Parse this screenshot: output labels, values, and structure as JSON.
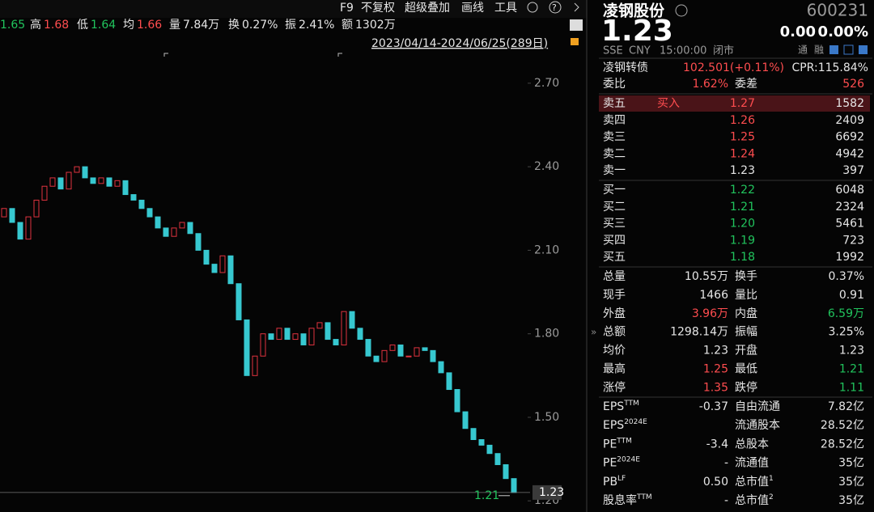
{
  "menu": [
    "F9",
    "不复权",
    "超级叠加",
    "画线",
    "工具"
  ],
  "quote": [
    {
      "value": "1.65",
      "color": "#21c45d"
    },
    {
      "label": "高",
      "value": "1.68",
      "color": "#ff4d4f"
    },
    {
      "label": "低",
      "value": "1.64",
      "color": "#21c45d"
    },
    {
      "label": "均",
      "value": "1.66",
      "color": "#ff4d4f"
    },
    {
      "label": "量",
      "value": "7.84万"
    },
    {
      "label": "换",
      "value": "0.27%"
    },
    {
      "label": "振",
      "value": "2.41%"
    },
    {
      "label": "额",
      "value": "1302万"
    }
  ],
  "date_range": "2023/04/14-2024/06/25(289日)",
  "chart_data": {
    "type": "candlestick",
    "ylim": [
      1.16,
      2.81
    ],
    "yticks": [
      {
        "value": 2.7,
        "label": "2.70"
      },
      {
        "value": 2.4,
        "label": "2.40"
      },
      {
        "value": 2.1,
        "label": "2.10"
      },
      {
        "value": 1.8,
        "label": "1.80"
      },
      {
        "value": 1.5,
        "label": "1.50"
      },
      {
        "value": 1.2,
        "label": "1.20"
      }
    ],
    "open": [
      2.22,
      2.25,
      2.2,
      2.14,
      2.22,
      2.28,
      2.33,
      2.36,
      2.32,
      2.38,
      2.4,
      2.36,
      2.34,
      2.36,
      2.33,
      2.35,
      2.3,
      2.28,
      2.25,
      2.22,
      2.18,
      2.15,
      2.18,
      2.2,
      2.16,
      2.1,
      2.05,
      2.02,
      2.08,
      1.98,
      1.85,
      1.65,
      1.72,
      1.8,
      1.78,
      1.82,
      1.78,
      1.8,
      1.76,
      1.82,
      1.84,
      1.78,
      1.76,
      1.88,
      1.82,
      1.78,
      1.72,
      1.7,
      1.74,
      1.76,
      1.72,
      1.72,
      1.75,
      1.74,
      1.7,
      1.66,
      1.6,
      1.52,
      1.46,
      1.42,
      1.4,
      1.37,
      1.33,
      1.28
    ],
    "close": [
      2.25,
      2.2,
      2.14,
      2.22,
      2.28,
      2.33,
      2.36,
      2.32,
      2.38,
      2.4,
      2.36,
      2.34,
      2.36,
      2.33,
      2.35,
      2.3,
      2.28,
      2.25,
      2.22,
      2.18,
      2.15,
      2.18,
      2.2,
      2.16,
      2.1,
      2.05,
      2.02,
      2.08,
      1.98,
      1.85,
      1.65,
      1.72,
      1.8,
      1.78,
      1.82,
      1.78,
      1.8,
      1.76,
      1.82,
      1.84,
      1.78,
      1.76,
      1.88,
      1.82,
      1.78,
      1.72,
      1.7,
      1.74,
      1.76,
      1.72,
      1.72,
      1.75,
      1.74,
      1.7,
      1.66,
      1.6,
      1.52,
      1.46,
      1.42,
      1.4,
      1.37,
      1.33,
      1.28,
      1.23
    ],
    "up_color": "#e0333f",
    "down_color": "#37c8d0",
    "last_price": {
      "value": 1.23,
      "label": "1.23"
    },
    "low_marker": {
      "value": 1.21,
      "label": "1.21"
    }
  },
  "header": {
    "name": "凌钢股份",
    "code": "600231",
    "price": "1.23",
    "change": "0.00",
    "change_pct": "0.00%",
    "exchange": "SSE",
    "currency": "CNY",
    "time": "15:00:00",
    "status": "闭市",
    "badges": [
      "通",
      "融"
    ]
  },
  "bond": {
    "name": "凌钢转债",
    "price": "102.501(+0.11%)",
    "cpr": "CPR:115.84%"
  },
  "commission": [
    {
      "label": "委比",
      "value": "1.62%",
      "color": "#ff4d4f"
    },
    {
      "label": "委差",
      "value": "526",
      "color": "#ff4d4f"
    }
  ],
  "order_book": [
    {
      "label": "卖五",
      "tag": "买入",
      "price": "1.27",
      "volume": "1582",
      "color": "#ff4d4f"
    },
    {
      "label": "卖四",
      "price": "1.26",
      "volume": "2409",
      "color": "#ff4d4f"
    },
    {
      "label": "卖三",
      "price": "1.25",
      "volume": "6692",
      "color": "#ff4d4f"
    },
    {
      "label": "卖二",
      "price": "1.24",
      "volume": "4942",
      "color": "#ff4d4f"
    },
    {
      "label": "卖一",
      "price": "1.23",
      "volume": "397"
    },
    {
      "label": "买一",
      "price": "1.22",
      "volume": "6048",
      "color": "#21c45d"
    },
    {
      "label": "买二",
      "price": "1.21",
      "volume": "2324",
      "color": "#21c45d"
    },
    {
      "label": "买三",
      "price": "1.20",
      "volume": "5461",
      "color": "#21c45d"
    },
    {
      "label": "买四",
      "price": "1.19",
      "volume": "723",
      "color": "#21c45d"
    },
    {
      "label": "买五",
      "price": "1.18",
      "volume": "1992",
      "color": "#21c45d"
    }
  ],
  "stats": [
    [
      {
        "label": "总量",
        "value": "10.55万"
      },
      {
        "label": "换手",
        "value": "0.37%"
      }
    ],
    [
      {
        "label": "现手",
        "value": "1466"
      },
      {
        "label": "量比",
        "value": "0.91"
      }
    ],
    [
      {
        "label": "外盘",
        "value": "3.96万",
        "color": "#ff4d4f"
      },
      {
        "label": "内盘",
        "value": "6.59万",
        "color": "#21c45d"
      }
    ],
    [
      {
        "label": "总额",
        "value": "1298.14万"
      },
      {
        "label": "振幅",
        "value": "3.25%"
      }
    ],
    [
      {
        "label": "均价",
        "value": "1.23"
      },
      {
        "label": "开盘",
        "value": "1.23"
      }
    ],
    [
      {
        "label": "最高",
        "value": "1.25",
        "color": "#ff4d4f"
      },
      {
        "label": "最低",
        "value": "1.21",
        "color": "#21c45d"
      }
    ],
    [
      {
        "label": "涨停",
        "value": "1.35",
        "color": "#ff4d4f"
      },
      {
        "label": "跌停",
        "value": "1.11",
        "color": "#21c45d"
      }
    ]
  ],
  "fundamentals": [
    [
      {
        "label": "EPS",
        "sup": "TTM",
        "value": "-0.37"
      },
      {
        "label": "自由流通",
        "value": "7.82亿"
      }
    ],
    [
      {
        "label": "EPS",
        "sup": "2024E"
      },
      {
        "label": "流通股本",
        "value": "28.52亿"
      }
    ],
    [
      {
        "label": "PE",
        "sup": "TTM",
        "value": "-3.4"
      },
      {
        "label": "总股本",
        "value": "28.52亿"
      }
    ],
    [
      {
        "label": "PE",
        "sup": "2024E",
        "value": "-"
      },
      {
        "label": "流通值",
        "value": "35亿"
      }
    ],
    [
      {
        "label": "PB",
        "sup": "LF",
        "value": "0.50"
      },
      {
        "label": "总市值",
        "sup": "1",
        "value": "35亿"
      }
    ],
    [
      {
        "label": "股息率",
        "sup": "TTM",
        "value": "-"
      },
      {
        "label": "总市值",
        "sup": "2",
        "value": "35亿"
      }
    ]
  ]
}
